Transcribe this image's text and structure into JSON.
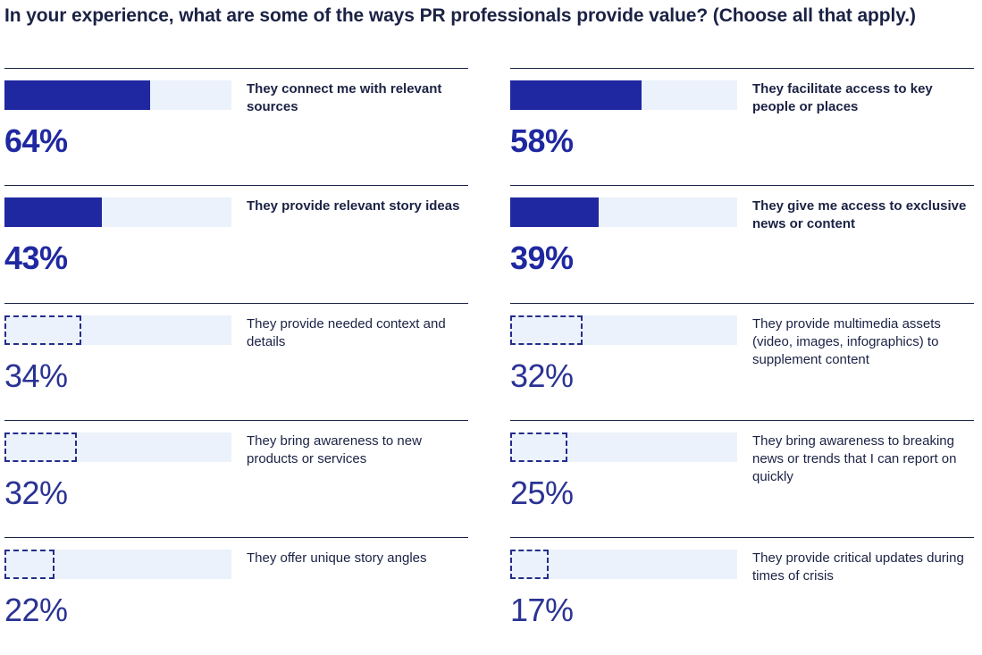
{
  "title": "In your experience, what are some of the ways PR professionals provide value? (Choose all that apply.)",
  "colors": {
    "highlight_fill": "#1f28a0",
    "track": "#ebf2fb",
    "dashed_outline": "#242d8c",
    "text": "#1b2244"
  },
  "chart_data": {
    "type": "bar",
    "title": "In your experience, what are some of the ways PR professionals provide value? (Choose all that apply.)",
    "xlim": [
      0,
      100
    ],
    "columns": [
      [
        {
          "label": "They connect me with relevant sources",
          "value": 64,
          "display": "64%",
          "highlighted": true
        },
        {
          "label": "They provide relevant story ideas",
          "value": 43,
          "display": "43%",
          "highlighted": true
        },
        {
          "label": "They provide needed context and details",
          "value": 34,
          "display": "34%",
          "highlighted": false
        },
        {
          "label": "They bring awareness to new products or services",
          "value": 32,
          "display": "32%",
          "highlighted": false
        },
        {
          "label": "They offer unique story angles",
          "value": 22,
          "display": "22%",
          "highlighted": false
        }
      ],
      [
        {
          "label": "They facilitate access to key people or places",
          "value": 58,
          "display": "58%",
          "highlighted": true
        },
        {
          "label": "They give me access to exclusive news or content",
          "value": 39,
          "display": "39%",
          "highlighted": true
        },
        {
          "label": "They provide multimedia assets (video, images, infographics) to supplement content",
          "value": 32,
          "display": "32%",
          "highlighted": false
        },
        {
          "label": "They bring awareness to breaking news or trends that I can report on quickly",
          "value": 25,
          "display": "25%",
          "highlighted": false
        },
        {
          "label": "They provide critical updates during times of crisis",
          "value": 17,
          "display": "17%",
          "highlighted": false
        }
      ]
    ]
  }
}
